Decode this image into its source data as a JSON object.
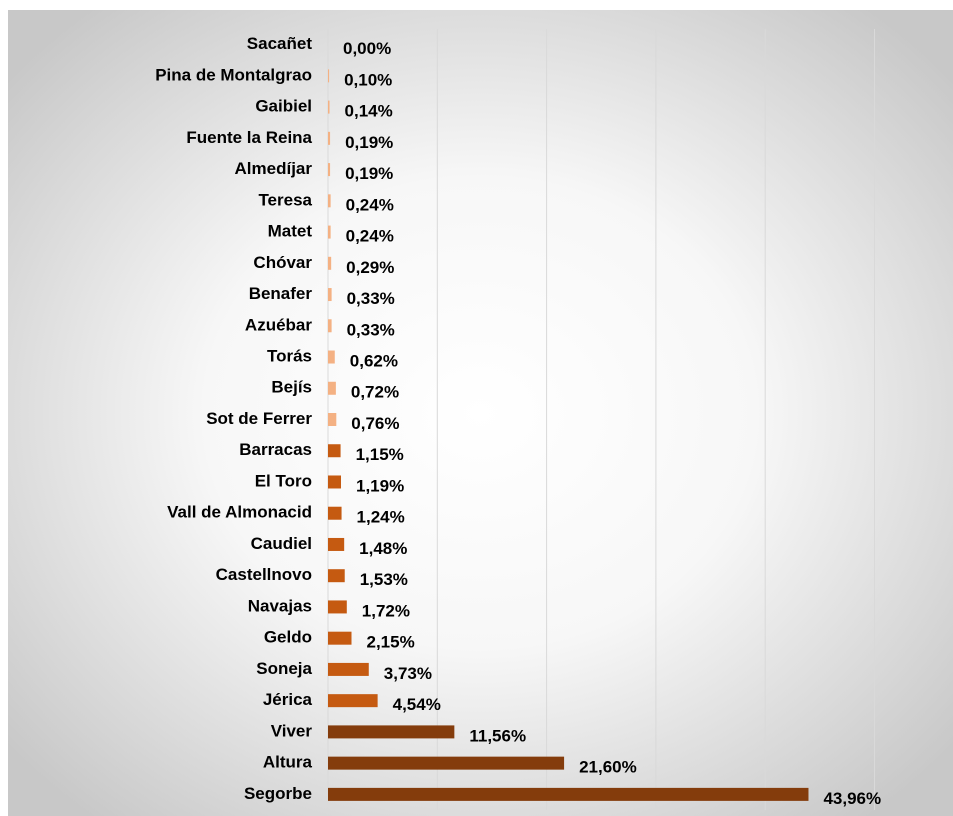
{
  "chart_data": {
    "type": "barh",
    "categories": [
      "Sacañet",
      "Pina de Montalgrao",
      "Gaibiel",
      "Fuente la Reina",
      "Almedíjar",
      "Teresa",
      "Matet",
      "Chóvar",
      "Benafer",
      "Azuébar",
      "Torás",
      "Bejís",
      "Sot de Ferrer",
      "Barracas",
      "El Toro",
      "Vall de Almonacid",
      "Caudiel",
      "Castellnovo",
      "Navajas",
      "Geldo",
      "Soneja",
      "Jérica",
      "Viver",
      "Altura",
      "Segorbe"
    ],
    "values": [
      0.0,
      0.1,
      0.14,
      0.19,
      0.19,
      0.24,
      0.24,
      0.29,
      0.33,
      0.33,
      0.62,
      0.72,
      0.76,
      1.15,
      1.19,
      1.24,
      1.48,
      1.53,
      1.72,
      2.15,
      3.73,
      4.54,
      11.56,
      21.6,
      43.96
    ],
    "value_labels": [
      "0,00%",
      "0,10%",
      "0,14%",
      "0,19%",
      "0,19%",
      "0,24%",
      "0,24%",
      "0,29%",
      "0,33%",
      "0,33%",
      "0,62%",
      "0,72%",
      "0,76%",
      "1,15%",
      "1,19%",
      "1,24%",
      "1,48%",
      "1,53%",
      "1,72%",
      "2,15%",
      "3,73%",
      "4,54%",
      "11,56%",
      "21,60%",
      "43,96%"
    ],
    "colors": [
      "#f4b183",
      "#f4b183",
      "#f4b183",
      "#f4b183",
      "#f4b183",
      "#f4b183",
      "#f4b183",
      "#f4b183",
      "#f4b183",
      "#f4b183",
      "#f4b183",
      "#f4b183",
      "#f4b183",
      "#c55a11",
      "#c55a11",
      "#c55a11",
      "#c55a11",
      "#c55a11",
      "#c55a11",
      "#c55a11",
      "#c55a11",
      "#c55a11",
      "#843c0c",
      "#843c0c",
      "#843c0c"
    ],
    "xlim": [
      0,
      50
    ],
    "xticks": [
      0,
      10,
      20,
      30,
      40,
      50
    ],
    "grid": true
  }
}
